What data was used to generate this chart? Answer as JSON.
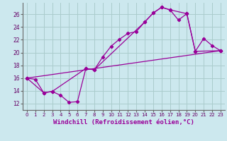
{
  "bg_color": "#cce8ee",
  "line_color": "#990099",
  "grid_color": "#aacccc",
  "xlabel": "Windchill (Refroidissement éolien,°C)",
  "xlabel_fontsize": 6.5,
  "xlim": [
    -0.5,
    23.5
  ],
  "ylim": [
    11.0,
    27.8
  ],
  "yticks": [
    12,
    14,
    16,
    18,
    20,
    22,
    24,
    26
  ],
  "xticks": [
    0,
    1,
    2,
    3,
    4,
    5,
    6,
    7,
    8,
    9,
    10,
    11,
    12,
    13,
    14,
    15,
    16,
    17,
    18,
    19,
    20,
    21,
    22,
    23
  ],
  "line1_x": [
    0,
    1,
    2,
    3,
    4,
    5,
    6,
    7,
    8,
    9,
    10,
    11,
    12,
    13,
    14,
    15,
    16,
    17,
    18,
    19,
    20,
    21,
    22,
    23
  ],
  "line1_y": [
    16.0,
    15.8,
    13.7,
    13.9,
    13.3,
    12.2,
    12.3,
    17.5,
    17.3,
    19.3,
    21.0,
    22.1,
    23.0,
    23.3,
    24.8,
    26.2,
    27.1,
    26.7,
    25.1,
    26.1,
    20.2,
    22.2,
    21.1,
    20.3
  ],
  "line2_x": [
    0,
    2,
    3,
    7,
    8,
    14,
    15,
    16,
    17,
    19,
    20,
    23
  ],
  "line2_y": [
    16.0,
    13.7,
    13.9,
    17.5,
    17.3,
    24.8,
    26.2,
    27.1,
    26.7,
    26.1,
    20.2,
    20.3
  ],
  "line3_x": [
    0,
    23
  ],
  "line3_y": [
    16.0,
    20.3
  ]
}
